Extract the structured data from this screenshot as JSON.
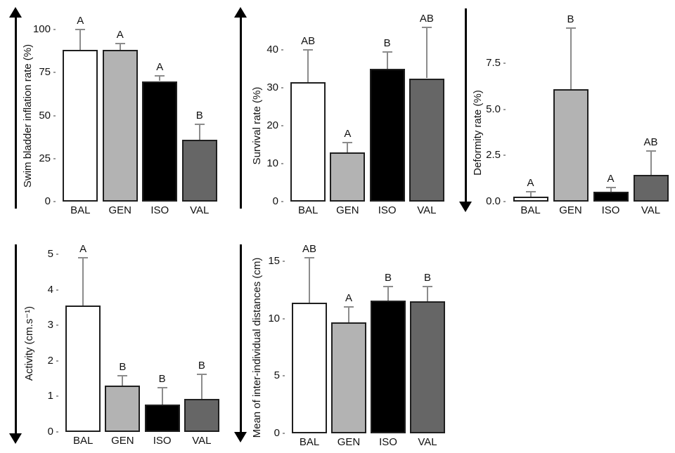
{
  "figure": {
    "background": "#ffffff",
    "groups": [
      "BAL",
      "GEN",
      "ISO",
      "VAL"
    ],
    "bar_colors": [
      "#ffffff",
      "#b3b3b3",
      "#000000",
      "#666666"
    ],
    "bar_outline_color": "#1f1f1f",
    "error_bar_color": "#8c8c8c",
    "arrow_color": "#000000",
    "text_color": "#111111"
  },
  "chart_data": [
    {
      "type": "bar",
      "panel": "top-left",
      "title": "",
      "xlabel": "",
      "ylabel": "Swim bladder inflation rate (%)",
      "categories": [
        "BAL",
        "GEN",
        "ISO",
        "VAL"
      ],
      "values": [
        88,
        88,
        70,
        36
      ],
      "errors_plus": [
        12,
        4,
        3,
        9
      ],
      "sig_letters": [
        "A",
        "A",
        "A",
        "B"
      ],
      "yticks": [
        0,
        25,
        50,
        75,
        100
      ],
      "ytick_labels": [
        "0",
        "25",
        "50",
        "75",
        "100"
      ],
      "ylim": [
        0,
        105
      ],
      "grid": false,
      "legend": false,
      "axis_arrow": "up"
    },
    {
      "type": "bar",
      "panel": "top-middle",
      "title": "",
      "xlabel": "",
      "ylabel": "Survival rate (%)",
      "categories": [
        "BAL",
        "GEN",
        "ISO",
        "VAL"
      ],
      "values": [
        31.5,
        13,
        35,
        32.5
      ],
      "errors_plus": [
        8.5,
        2.5,
        4.5,
        13.5
      ],
      "sig_letters": [
        "AB",
        "A",
        "B",
        "AB"
      ],
      "yticks": [
        0,
        10,
        20,
        30,
        40
      ],
      "ytick_labels": [
        "0",
        "10",
        "20",
        "30",
        "40"
      ],
      "ylim": [
        0,
        48
      ],
      "grid": false,
      "legend": false,
      "axis_arrow": "up"
    },
    {
      "type": "bar",
      "panel": "top-right",
      "title": "",
      "xlabel": "",
      "ylabel": "Deformity rate (%)",
      "categories": [
        "BAL",
        "GEN",
        "ISO",
        "VAL"
      ],
      "values": [
        0.25,
        6.1,
        0.55,
        1.45
      ],
      "errors_plus": [
        0.3,
        3.3,
        0.2,
        1.3
      ],
      "sig_letters": [
        "A",
        "B",
        "A",
        "AB"
      ],
      "yticks": [
        0,
        2.5,
        5,
        7.5
      ],
      "ytick_labels": [
        "0.0",
        "2.5",
        "5.0",
        "7.5"
      ],
      "ylim": [
        0,
        10
      ],
      "grid": false,
      "legend": false,
      "axis_arrow": "down"
    },
    {
      "type": "bar",
      "panel": "bottom-left",
      "title": "",
      "xlabel": "",
      "ylabel": "Activity (cm.s⁻¹)",
      "categories": [
        "BAL",
        "GEN",
        "ISO",
        "VAL"
      ],
      "values": [
        3.55,
        1.3,
        0.78,
        0.92
      ],
      "errors_plus": [
        1.35,
        0.28,
        0.47,
        0.7
      ],
      "sig_letters": [
        "A",
        "B",
        "B",
        "B"
      ],
      "yticks": [
        0,
        1,
        2,
        3,
        4,
        5
      ],
      "ytick_labels": [
        "0",
        "1",
        "2",
        "3",
        "4",
        "5"
      ],
      "ylim": [
        0,
        5.3
      ],
      "grid": false,
      "legend": false,
      "axis_arrow": "down"
    },
    {
      "type": "bar",
      "panel": "bottom-middle",
      "title": "",
      "xlabel": "",
      "ylabel": "Mean of inter-individual distances (cm)",
      "categories": [
        "BAL",
        "GEN",
        "ISO",
        "VAL"
      ],
      "values": [
        11.4,
        9.7,
        11.6,
        11.5
      ],
      "errors_plus": [
        3.9,
        1.3,
        1.2,
        1.3
      ],
      "sig_letters": [
        "AB",
        "A",
        "B",
        "B"
      ],
      "yticks": [
        0,
        5,
        10,
        15
      ],
      "ytick_labels": [
        "0",
        "5",
        "10",
        "15"
      ],
      "ylim": [
        0,
        16.5
      ],
      "grid": false,
      "legend": false,
      "axis_arrow": "down"
    }
  ]
}
